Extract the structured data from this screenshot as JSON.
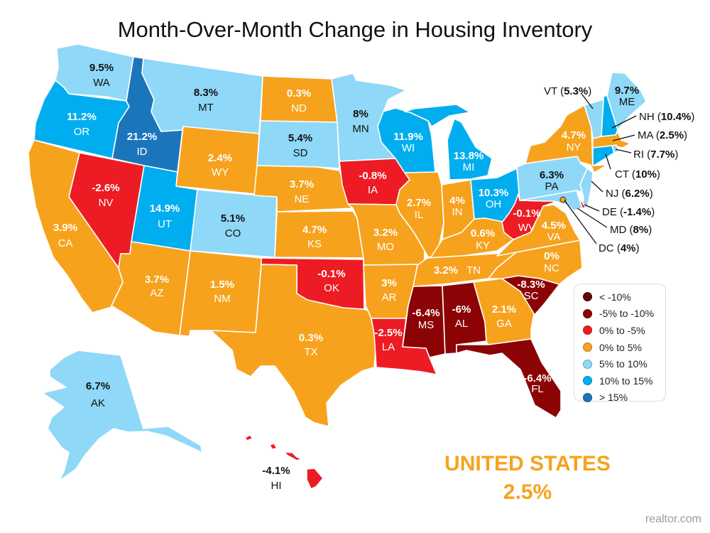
{
  "title": "Month-Over-Month Change in Housing Inventory",
  "legend": [
    {
      "key": "lt-10",
      "label": "< -10%",
      "color": "#5c0a0a"
    },
    {
      "key": "m5to-10",
      "label": "-5% to -10%",
      "color": "#8b0304"
    },
    {
      "key": "0to-5",
      "label": "0% to -5%",
      "color": "#ed1c24"
    },
    {
      "key": "0to5",
      "label": "0% to 5%",
      "color": "#f7a21d"
    },
    {
      "key": "5to10",
      "label": "5% to 10%",
      "color": "#8fd8f7"
    },
    {
      "key": "10to15",
      "label": "10% to 15%",
      "color": "#00aeef"
    },
    {
      "key": "gt15",
      "label": "> 15%",
      "color": "#1b75bb"
    }
  ],
  "states": [
    {
      "abbr": "WA",
      "value": "9.5%",
      "range": "5to10"
    },
    {
      "abbr": "OR",
      "value": "11.2%",
      "range": "10to15"
    },
    {
      "abbr": "ID",
      "value": "21.2%",
      "range": "gt15"
    },
    {
      "abbr": "MT",
      "value": "8.3%",
      "range": "5to10"
    },
    {
      "abbr": "WY",
      "value": "2.4%",
      "range": "0to5"
    },
    {
      "abbr": "NV",
      "value": "-2.6%",
      "range": "0to-5"
    },
    {
      "abbr": "CA",
      "value": "3.9%",
      "range": "0to5"
    },
    {
      "abbr": "UT",
      "value": "14.9%",
      "range": "10to15"
    },
    {
      "abbr": "CO",
      "value": "5.1%",
      "range": "5to10"
    },
    {
      "abbr": "AZ",
      "value": "3.7%",
      "range": "0to5"
    },
    {
      "abbr": "NM",
      "value": "1.5%",
      "range": "0to5"
    },
    {
      "abbr": "ND",
      "value": "0.3%",
      "range": "0to5"
    },
    {
      "abbr": "SD",
      "value": "5.4%",
      "range": "5to10"
    },
    {
      "abbr": "NE",
      "value": "3.7%",
      "range": "0to5"
    },
    {
      "abbr": "KS",
      "value": "4.7%",
      "range": "0to5"
    },
    {
      "abbr": "OK",
      "value": "-0.1%",
      "range": "0to-5"
    },
    {
      "abbr": "TX",
      "value": "0.3%",
      "range": "0to5"
    },
    {
      "abbr": "MN",
      "value": "8%",
      "range": "5to10"
    },
    {
      "abbr": "IA",
      "value": "-0.8%",
      "range": "0to-5"
    },
    {
      "abbr": "MO",
      "value": "3.2%",
      "range": "0to5"
    },
    {
      "abbr": "AR",
      "value": "3%",
      "range": "0to5"
    },
    {
      "abbr": "LA",
      "value": "-2.5%",
      "range": "0to-5"
    },
    {
      "abbr": "WI",
      "value": "11.9%",
      "range": "10to15"
    },
    {
      "abbr": "MI",
      "value": "13.8%",
      "range": "10to15"
    },
    {
      "abbr": "IL",
      "value": "2.7%",
      "range": "0to5"
    },
    {
      "abbr": "IN",
      "value": "4%",
      "range": "0to5"
    },
    {
      "abbr": "OH",
      "value": "10.3%",
      "range": "10to15"
    },
    {
      "abbr": "KY",
      "value": "0.6%",
      "range": "0to5"
    },
    {
      "abbr": "TN",
      "value": "3.2%",
      "range": "0to5"
    },
    {
      "abbr": "MS",
      "value": "-6.4%",
      "range": "m5to-10"
    },
    {
      "abbr": "AL",
      "value": "-6%",
      "range": "m5to-10"
    },
    {
      "abbr": "GA",
      "value": "2.1%",
      "range": "0to5"
    },
    {
      "abbr": "FL",
      "value": "-6.4%",
      "range": "m5to-10"
    },
    {
      "abbr": "SC",
      "value": "-8.3%",
      "range": "m5to-10"
    },
    {
      "abbr": "NC",
      "value": "0%",
      "range": "0to5"
    },
    {
      "abbr": "VA",
      "value": "4.5%",
      "range": "0to5"
    },
    {
      "abbr": "WV",
      "value": "-0.1%",
      "range": "0to-5"
    },
    {
      "abbr": "PA",
      "value": "6.3%",
      "range": "5to10"
    },
    {
      "abbr": "NY",
      "value": "4.7%",
      "range": "0to5"
    },
    {
      "abbr": "VT",
      "value": "5.3%",
      "range": "5to10"
    },
    {
      "abbr": "NH",
      "value": "10.4%",
      "range": "10to15"
    },
    {
      "abbr": "ME",
      "value": "9.7%",
      "range": "5to10"
    },
    {
      "abbr": "MA",
      "value": "2.5%",
      "range": "0to5"
    },
    {
      "abbr": "RI",
      "value": "7.7%",
      "range": "5to10"
    },
    {
      "abbr": "CT",
      "value": "10%",
      "range": "10to15"
    },
    {
      "abbr": "NJ",
      "value": "6.2%",
      "range": "5to10"
    },
    {
      "abbr": "DE",
      "value": "-1.4%",
      "range": "0to-5"
    },
    {
      "abbr": "MD",
      "value": "8%",
      "range": "5to10"
    },
    {
      "abbr": "DC",
      "value": "4%",
      "range": "0to5"
    },
    {
      "abbr": "AK",
      "value": "6.7%",
      "range": "5to10"
    },
    {
      "abbr": "HI",
      "value": "-4.1%",
      "range": "0to-5"
    }
  ],
  "national": {
    "label": "UNITED STATES",
    "value": "2.5%",
    "color": "#f7a21d"
  },
  "source": "realtor.com"
}
